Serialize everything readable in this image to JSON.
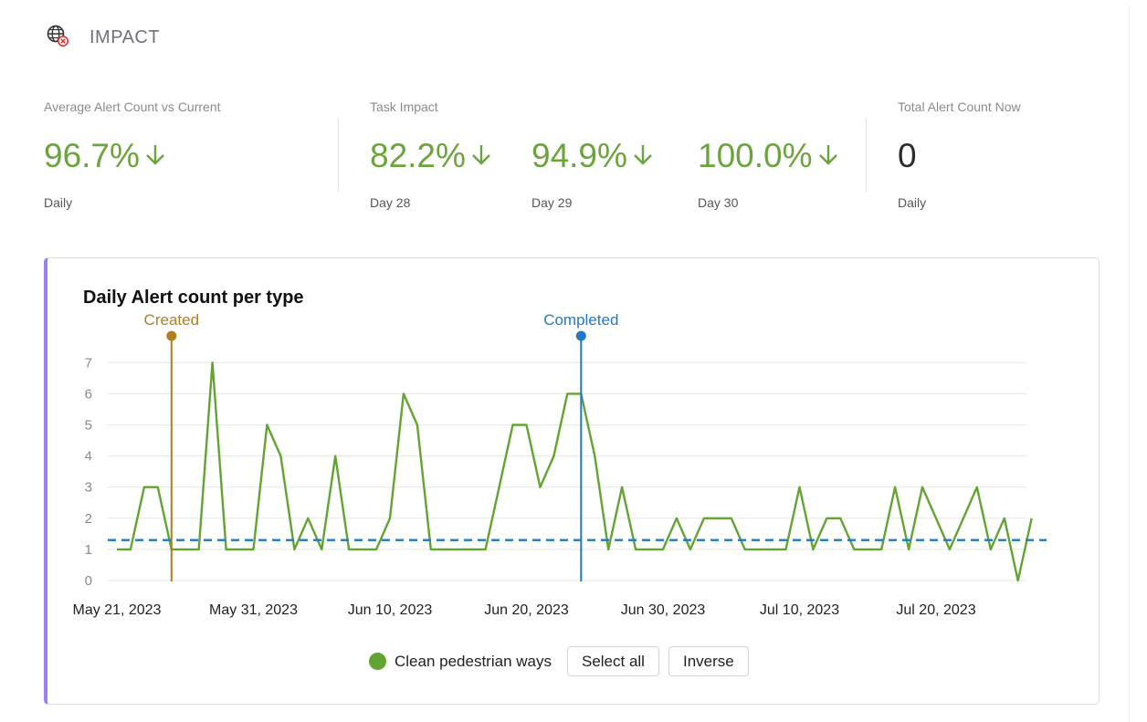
{
  "header": {
    "title": "IMPACT",
    "icon": "globe-alert-icon"
  },
  "metrics": {
    "average": {
      "label": "Average Alert Count vs Current",
      "value": "96.7%",
      "sub": "Daily"
    },
    "task_impact": {
      "label": "Task Impact",
      "items": [
        {
          "value": "82.2%",
          "sub": "Day 28"
        },
        {
          "value": "94.9%",
          "sub": "Day 29"
        },
        {
          "value": "100.0%",
          "sub": "Day 30"
        }
      ]
    },
    "total": {
      "label": "Total Alert Count Now",
      "value": "0",
      "sub": "Daily"
    }
  },
  "colors": {
    "positive": "#6aa43b",
    "series": "#62a332",
    "created": "#b07d1f",
    "completed": "#1f78c9",
    "average": "#1f78c9",
    "accent": "#9b7ef2"
  },
  "chart_data": {
    "type": "line",
    "title": "Daily Alert count per type",
    "x_start": "2023-05-21",
    "x_ticks": [
      "May 21, 2023",
      "May 31, 2023",
      "Jun 10, 2023",
      "Jun 20, 2023",
      "Jun 30, 2023",
      "Jul 10, 2023",
      "Jul 20, 2023"
    ],
    "x_tick_dates": [
      "2023-05-21",
      "2023-05-31",
      "2023-06-10",
      "2023-06-20",
      "2023-06-30",
      "2023-07-10",
      "2023-07-20"
    ],
    "y_ticks": [
      "0",
      "1",
      "2",
      "3",
      "4",
      "5",
      "6",
      "7"
    ],
    "ylim": [
      0,
      7
    ],
    "grid": true,
    "series": [
      {
        "name": "Clean pedestrian ways",
        "values": [
          1,
          1,
          3,
          3,
          1,
          1,
          1,
          7,
          1,
          1,
          1,
          5,
          4,
          1,
          2,
          1,
          4,
          1,
          1,
          1,
          2,
          6,
          5,
          1,
          1,
          1,
          1,
          1,
          3,
          5,
          5,
          3,
          4,
          6,
          6,
          4,
          1,
          3,
          1,
          1,
          1,
          2,
          1,
          2,
          2,
          2,
          1,
          1,
          1,
          1,
          3,
          1,
          2,
          2,
          1,
          1,
          1,
          3,
          1,
          3,
          2,
          1,
          2,
          3,
          1,
          2,
          0,
          2
        ]
      }
    ],
    "average_line": 1.3,
    "annotations": [
      {
        "label": "Created",
        "date": "2023-05-25"
      },
      {
        "label": "Completed",
        "date": "2023-06-24"
      }
    ],
    "legend_position": "bottom-center"
  },
  "controls": {
    "select_all": "Select all",
    "inverse": "Inverse"
  }
}
